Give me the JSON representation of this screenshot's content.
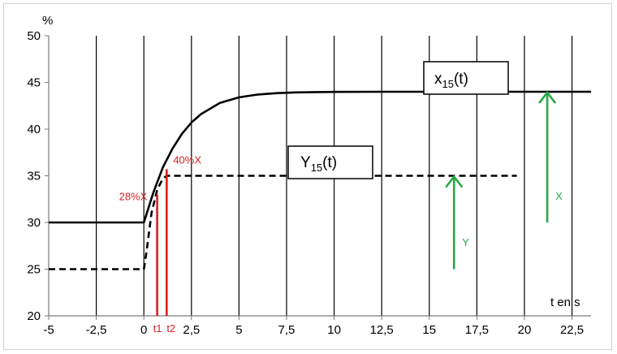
{
  "chart_data": {
    "type": "line",
    "title": "",
    "xlabel": "t en s",
    "ylabel": "%",
    "xlim": [
      -5,
      23.5
    ],
    "ylim": [
      20,
      50
    ],
    "x_ticks": [
      -5,
      -2.5,
      0,
      2.5,
      5,
      7.5,
      10,
      12.5,
      15,
      17.5,
      20,
      22.5
    ],
    "x_tick_labels": [
      "-5",
      "-2,5",
      "0",
      "2,5",
      "5",
      "7,5",
      "10",
      "12,5",
      "15",
      "17,5",
      "20",
      "22,5"
    ],
    "y_ticks": [
      20,
      25,
      30,
      35,
      40,
      45,
      50
    ],
    "y_tick_labels": [
      "20",
      "25",
      "30",
      "35",
      "40",
      "45",
      "50"
    ],
    "grid": "vertical",
    "series": [
      {
        "name": "x15(t)",
        "style": "solid",
        "color": "#000000",
        "x": [
          -5,
          0,
          0.5,
          1,
          1.5,
          2,
          2.5,
          3,
          4,
          5,
          6,
          7,
          8,
          10,
          12.5,
          15,
          17.5,
          20,
          23.5
        ],
        "y": [
          30,
          30,
          33.2,
          35.9,
          37.9,
          39.5,
          40.7,
          41.6,
          42.8,
          43.4,
          43.7,
          43.85,
          43.93,
          43.98,
          44,
          44,
          44,
          44,
          44
        ]
      },
      {
        "name": "Y15(t)",
        "style": "dashed",
        "color": "#000000",
        "x": [
          -5,
          0,
          0.15,
          0.4,
          0.7,
          1,
          1.2,
          2,
          5,
          10,
          15,
          19.6
        ],
        "y": [
          25,
          25,
          27,
          31,
          33.5,
          34.7,
          35,
          35,
          35,
          35,
          35,
          35
        ]
      }
    ],
    "annotations": {
      "label_x15": {
        "main": "x",
        "sub": "15",
        "tail": "(t)"
      },
      "label_y15": {
        "main": "Y",
        "sub": "15",
        "tail": "(t)"
      },
      "marker_40": {
        "text": "40%X",
        "color": "#d92020",
        "x": 1.2,
        "y": 35.7
      },
      "marker_28": {
        "text": "28%X",
        "color": "#d92020",
        "x": 0.7,
        "y": 33
      },
      "t1": {
        "text": "t1",
        "x": 0.7,
        "color": "#d92020"
      },
      "t2": {
        "text": "t2",
        "x": 1.2,
        "color": "#d92020"
      },
      "arrow_Y": {
        "text": "Y",
        "x": 16.3,
        "y_from": 25,
        "y_to": 35,
        "color": "#27a844"
      },
      "arrow_X": {
        "text": "X",
        "x": 21.2,
        "y_from": 30,
        "y_to": 44,
        "color": "#27a844"
      }
    }
  }
}
